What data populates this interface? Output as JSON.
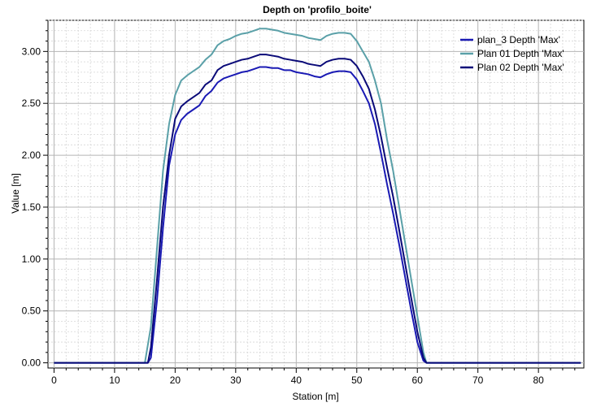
{
  "chart_data": {
    "type": "line",
    "title": "Depth on 'profilo_boite'",
    "xlabel": "Station [m]",
    "ylabel": "Value [m]",
    "xlim": [
      -1,
      87.5
    ],
    "ylim": [
      -0.05,
      3.3
    ],
    "xticks": [
      0,
      10,
      20,
      30,
      40,
      50,
      60,
      70,
      80
    ],
    "xtick_labels": [
      "0",
      "10",
      "20",
      "30",
      "40",
      "50",
      "60",
      "70",
      "80"
    ],
    "yticks": [
      0,
      0.5,
      1.0,
      1.5,
      2.0,
      2.5,
      3.0
    ],
    "ytick_labels": [
      "0.00",
      "0.50",
      "1.00",
      "1.50",
      "2.00",
      "2.50",
      "3.00"
    ],
    "grid": true,
    "legend_position": "top-right",
    "series": [
      {
        "name": "plan_3 Depth 'Max'",
        "color": "#1a1ab4",
        "x": [
          0,
          10,
          15.5,
          16,
          17,
          18,
          19,
          20,
          21,
          22,
          23,
          24,
          25,
          26,
          27,
          28,
          29,
          30,
          31,
          32,
          33,
          34,
          35,
          36,
          37,
          38,
          39,
          40,
          41,
          42,
          43,
          44,
          45,
          46,
          47,
          48,
          49,
          50,
          51,
          52,
          53,
          54,
          55,
          56,
          57,
          58,
          59,
          60,
          61,
          61.5,
          62,
          70,
          87
        ],
        "y": [
          0,
          0,
          0,
          0.05,
          0.6,
          1.3,
          1.9,
          2.2,
          2.34,
          2.4,
          2.44,
          2.48,
          2.57,
          2.62,
          2.7,
          2.74,
          2.76,
          2.78,
          2.8,
          2.81,
          2.83,
          2.85,
          2.85,
          2.84,
          2.84,
          2.82,
          2.82,
          2.8,
          2.79,
          2.78,
          2.76,
          2.75,
          2.78,
          2.8,
          2.81,
          2.81,
          2.8,
          2.73,
          2.62,
          2.5,
          2.3,
          2.02,
          1.72,
          1.44,
          1.14,
          0.82,
          0.5,
          0.2,
          0.02,
          0,
          0,
          0,
          0
        ]
      },
      {
        "name": "Plan 01 Depth 'Max'",
        "color": "#5aa0a8",
        "x": [
          0,
          10,
          15,
          16,
          17,
          18,
          19,
          20,
          21,
          22,
          23,
          24,
          25,
          26,
          27,
          28,
          29,
          30,
          31,
          32,
          33,
          34,
          35,
          36,
          37,
          38,
          39,
          40,
          41,
          42,
          43,
          44,
          45,
          46,
          47,
          48,
          49,
          50,
          51,
          52,
          53,
          54,
          55,
          56,
          57,
          58,
          59,
          60,
          61,
          61.5,
          62,
          70,
          87
        ],
        "y": [
          0,
          0,
          0,
          0.35,
          1.1,
          1.85,
          2.3,
          2.58,
          2.72,
          2.77,
          2.81,
          2.85,
          2.92,
          2.97,
          3.06,
          3.1,
          3.12,
          3.15,
          3.17,
          3.18,
          3.2,
          3.22,
          3.22,
          3.21,
          3.2,
          3.18,
          3.17,
          3.16,
          3.15,
          3.13,
          3.12,
          3.11,
          3.15,
          3.17,
          3.18,
          3.18,
          3.17,
          3.1,
          3.0,
          2.9,
          2.72,
          2.5,
          2.15,
          1.85,
          1.5,
          1.15,
          0.8,
          0.45,
          0.1,
          0,
          0,
          0,
          0
        ]
      },
      {
        "name": "Plan 02 Depth 'Max'",
        "color": "#0a0a78",
        "x": [
          0,
          10,
          15.5,
          16,
          17,
          18,
          19,
          20,
          21,
          22,
          23,
          24,
          25,
          26,
          27,
          28,
          29,
          30,
          31,
          32,
          33,
          34,
          35,
          36,
          37,
          38,
          39,
          40,
          41,
          42,
          43,
          44,
          45,
          46,
          47,
          48,
          49,
          50,
          51,
          52,
          53,
          54,
          55,
          56,
          57,
          58,
          59,
          60,
          61,
          61.5,
          62,
          70,
          87
        ],
        "y": [
          0,
          0,
          0,
          0.15,
          0.8,
          1.5,
          2.0,
          2.35,
          2.47,
          2.52,
          2.56,
          2.6,
          2.68,
          2.72,
          2.82,
          2.86,
          2.88,
          2.9,
          2.92,
          2.93,
          2.95,
          2.97,
          2.97,
          2.96,
          2.95,
          2.93,
          2.92,
          2.91,
          2.9,
          2.88,
          2.87,
          2.86,
          2.9,
          2.92,
          2.93,
          2.93,
          2.92,
          2.86,
          2.76,
          2.64,
          2.44,
          2.18,
          1.88,
          1.6,
          1.28,
          0.95,
          0.62,
          0.3,
          0.05,
          0,
          0,
          0,
          0
        ]
      }
    ]
  }
}
